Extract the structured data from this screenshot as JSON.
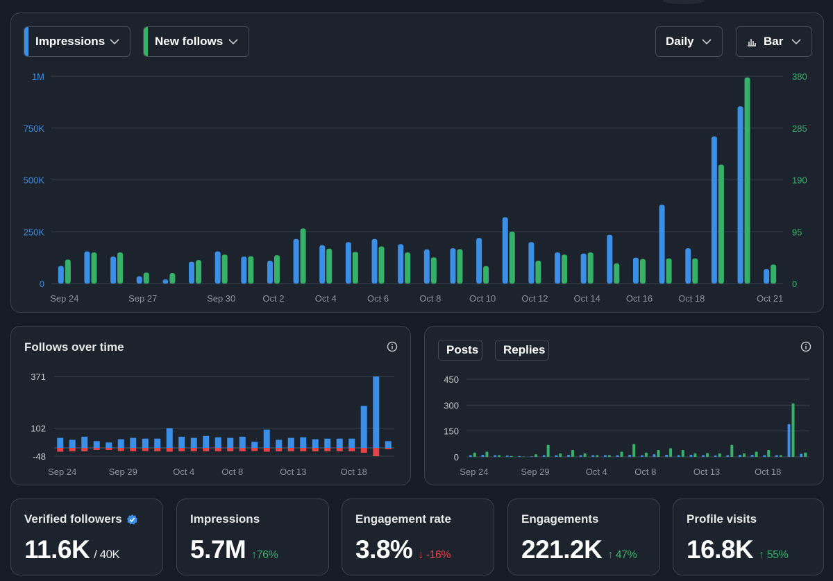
{
  "toolbar": {
    "metric1": {
      "label": "Impressions",
      "color": "#3b8fe6"
    },
    "metric2": {
      "label": "New follows",
      "color": "#35b16a"
    },
    "period": "Daily",
    "chart_type": "Bar"
  },
  "follows_card": {
    "title": "Follows over time"
  },
  "posts_card": {
    "legend": [
      {
        "label": "Posts",
        "color": "#3b8fe6"
      },
      {
        "label": "Replies",
        "color": "#35b16a"
      }
    ]
  },
  "stats": [
    {
      "label": "Verified followers",
      "value": "11.6K",
      "sub": "/ 40K",
      "change": "",
      "direction": "none"
    },
    {
      "label": "Impressions",
      "value": "5.7M",
      "sub": "",
      "change": "76%",
      "direction": "up"
    },
    {
      "label": "Engagement rate",
      "value": "3.8%",
      "sub": "",
      "change": "-16%",
      "direction": "down"
    },
    {
      "label": "Engagements",
      "value": "221.2K",
      "sub": "",
      "change": "47%",
      "direction": "up"
    },
    {
      "label": "Profile visits",
      "value": "16.8K",
      "sub": "",
      "change": "55%",
      "direction": "up"
    }
  ],
  "chart_data": [
    {
      "type": "bar",
      "title": "",
      "categories": [
        "Sep 24",
        "Sep 25",
        "Sep 26",
        "Sep 27",
        "Sep 28",
        "Sep 29",
        "Sep 30",
        "Oct 1",
        "Oct 2",
        "Oct 3",
        "Oct 4",
        "Oct 5",
        "Oct 6",
        "Oct 7",
        "Oct 8",
        "Oct 9",
        "Oct 10",
        "Oct 11",
        "Oct 12",
        "Oct 13",
        "Oct 14",
        "Oct 15",
        "Oct 16",
        "Oct 17",
        "Oct 18",
        "Oct 19",
        "Oct 20",
        "Oct 21"
      ],
      "x_tick_labels": [
        "Sep 24",
        "Sep 27",
        "Sep 30",
        "Oct 2",
        "Oct 4",
        "Oct 6",
        "Oct 8",
        "Oct 10",
        "Oct 12",
        "Oct 14",
        "Oct 16",
        "Oct 18",
        "Oct 21"
      ],
      "series": [
        {
          "name": "Impressions",
          "axis": "left",
          "values": [
            85000,
            155000,
            130000,
            35000,
            20000,
            105000,
            155000,
            130000,
            110000,
            215000,
            185000,
            200000,
            215000,
            190000,
            165000,
            170000,
            220000,
            320000,
            200000,
            150000,
            145000,
            235000,
            125000,
            380000,
            170000,
            710000,
            855000,
            70000
          ]
        },
        {
          "name": "New follows",
          "axis": "right",
          "values": [
            44,
            57,
            57,
            20,
            19,
            43,
            53,
            50,
            52,
            101,
            64,
            58,
            68,
            57,
            48,
            63,
            32,
            95,
            42,
            53,
            57,
            37,
            45,
            46,
            46,
            218,
            378,
            35
          ]
        }
      ],
      "y_left": {
        "ticks": [
          "0",
          "250K",
          "500K",
          "750K",
          "1M"
        ],
        "min": 0,
        "max": 1000000
      },
      "y_right": {
        "ticks": [
          "0",
          "95",
          "190",
          "285",
          "380"
        ],
        "min": 0,
        "max": 380
      },
      "grid": true
    },
    {
      "type": "bar",
      "title": "Follows over time",
      "x_tick_labels": [
        "Sep 24",
        "Sep 29",
        "Oct 4",
        "Oct 8",
        "Oct 13",
        "Oct 18"
      ],
      "series": [
        {
          "name": "Follows",
          "values": [
            52,
            42,
            58,
            35,
            28,
            45,
            52,
            48,
            48,
            102,
            58,
            52,
            62,
            55,
            52,
            58,
            32,
            95,
            42,
            52,
            55,
            45,
            48,
            48,
            48,
            218,
            371,
            35
          ]
        },
        {
          "name": "Unfollows",
          "values": [
            -22,
            -20,
            -20,
            -12,
            -12,
            -18,
            -20,
            -18,
            -20,
            -22,
            -20,
            -20,
            -20,
            -20,
            -20,
            -20,
            -18,
            -22,
            -20,
            -20,
            -20,
            -20,
            -20,
            -20,
            -20,
            -28,
            -48,
            -8
          ]
        }
      ],
      "y_ticks": [
        "-48",
        "102",
        "371"
      ],
      "ylim": [
        -48,
        371
      ],
      "grid": true
    },
    {
      "type": "bar",
      "title": "",
      "x_tick_labels": [
        "Sep 24",
        "Sep 29",
        "Oct 4",
        "Oct 8",
        "Oct 13",
        "Oct 18"
      ],
      "series": [
        {
          "name": "Posts",
          "values": [
            10,
            12,
            10,
            8,
            5,
            3,
            10,
            10,
            12,
            10,
            10,
            10,
            10,
            12,
            10,
            15,
            12,
            10,
            12,
            10,
            8,
            10,
            12,
            12,
            10,
            10,
            190,
            18
          ]
        },
        {
          "name": "Replies",
          "values": [
            25,
            30,
            10,
            5,
            2,
            15,
            70,
            20,
            40,
            20,
            10,
            10,
            30,
            75,
            25,
            40,
            50,
            40,
            20,
            22,
            20,
            70,
            20,
            30,
            40,
            10,
            310,
            25
          ]
        }
      ],
      "y_ticks": [
        "0",
        "150",
        "300",
        "450"
      ],
      "ylim": [
        0,
        450
      ],
      "grid": true
    }
  ]
}
